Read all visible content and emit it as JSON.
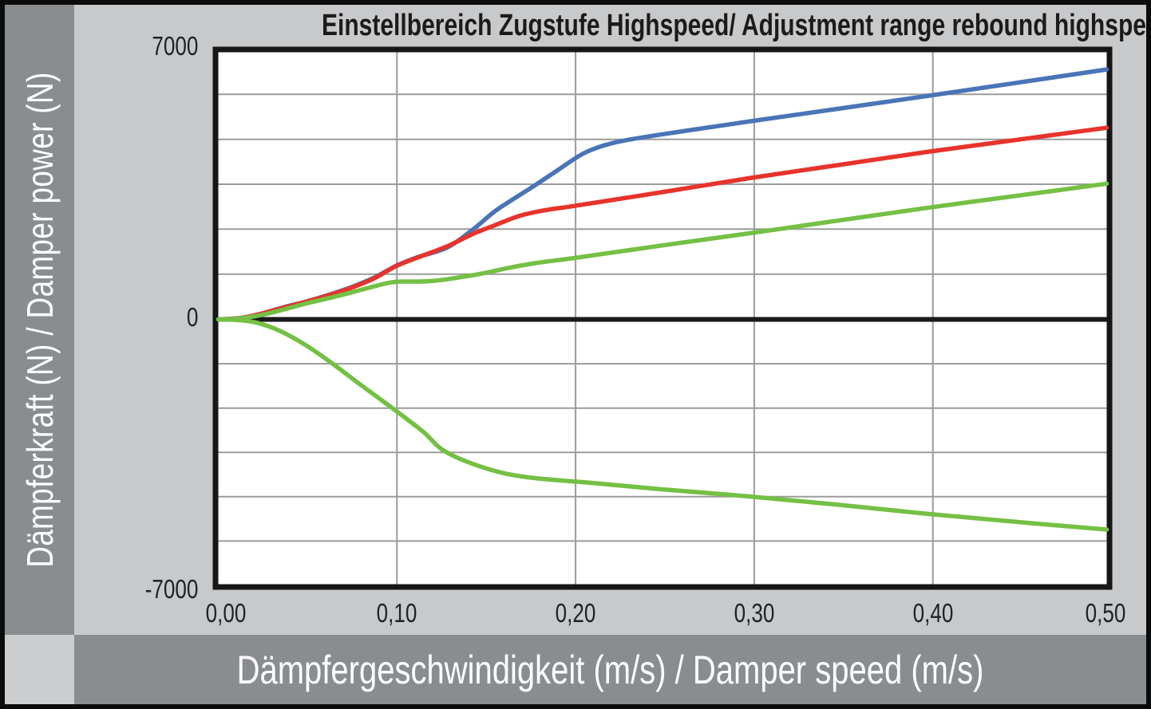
{
  "figure": {
    "title": "Einstellbereich Zugstufe Highspeed/ Adjustment range rebound highspeed",
    "y_axis_label": "Dämpferkraft (N) / Damper power (N)",
    "x_axis_label": "Dämpfergeschwindigkeit (m/s) / Damper speed (m/s)",
    "y_ticks": [
      "7000",
      "0",
      "-7000"
    ],
    "x_ticks": [
      "0,00",
      "0,10",
      "0,20",
      "0,30",
      "0,40",
      "0,50"
    ]
  },
  "colors": {
    "background": "#c8c9cb",
    "band": "#8a8d90",
    "band_text": "#ffffff",
    "plot_background": "#ffffff",
    "frame": "#161616",
    "zero_line": "#1a1a1a",
    "gridline": "#9b9b9b",
    "series_blue": "#4a74b8",
    "series_red": "#e7332b",
    "series_green": "#74c044"
  },
  "chart_data": {
    "type": "line",
    "title": "Einstellbereich Zugstufe Highspeed/ Adjustment range rebound highspeed",
    "xlabel": "Dämpfergeschwindigkeit (m/s) / Damper speed (m/s)",
    "ylabel": "Dämpferkraft (N) / Damper power (N)",
    "xlim": [
      0,
      0.5
    ],
    "ylim": [
      -7000,
      7000
    ],
    "x_tick_step": 0.1,
    "x_tick_labels": [
      "0,00",
      "0,10",
      "0,20",
      "0,30",
      "0,40",
      "0,50"
    ],
    "y_tick_labels": [
      "7000",
      "0",
      "-7000"
    ],
    "grid": true,
    "gridlines_per_half_y": 6,
    "legend": "none",
    "series": [
      {
        "name": "blue-line-rebound-max",
        "color": "#4a74b8",
        "points": [
          [
            0,
            0
          ],
          [
            0.013,
            40
          ],
          [
            0.025,
            160
          ],
          [
            0.038,
            330
          ],
          [
            0.05,
            470
          ],
          [
            0.063,
            650
          ],
          [
            0.075,
            840
          ],
          [
            0.088,
            1090
          ],
          [
            0.1,
            1390
          ],
          [
            0.112,
            1610
          ],
          [
            0.129,
            1870
          ],
          [
            0.143,
            2320
          ],
          [
            0.155,
            2780
          ],
          [
            0.164,
            3060
          ],
          [
            0.178,
            3470
          ],
          [
            0.191,
            3870
          ],
          [
            0.205,
            4290
          ],
          [
            0.217,
            4510
          ],
          [
            0.231,
            4660
          ],
          [
            0.26,
            4870
          ],
          [
            0.3,
            5140
          ],
          [
            0.35,
            5470
          ],
          [
            0.4,
            5800
          ],
          [
            0.45,
            6140
          ],
          [
            0.5,
            6480
          ]
        ]
      },
      {
        "name": "red-line-rebound-min",
        "color": "#e7332b",
        "points": [
          [
            0,
            0
          ],
          [
            0.013,
            40
          ],
          [
            0.025,
            155
          ],
          [
            0.038,
            320
          ],
          [
            0.05,
            465
          ],
          [
            0.063,
            640
          ],
          [
            0.075,
            820
          ],
          [
            0.088,
            1070
          ],
          [
            0.1,
            1380
          ],
          [
            0.112,
            1600
          ],
          [
            0.129,
            1900
          ],
          [
            0.143,
            2210
          ],
          [
            0.155,
            2430
          ],
          [
            0.17,
            2690
          ],
          [
            0.185,
            2840
          ],
          [
            0.2,
            2940
          ],
          [
            0.25,
            3300
          ],
          [
            0.3,
            3670
          ],
          [
            0.35,
            4010
          ],
          [
            0.4,
            4350
          ],
          [
            0.45,
            4660
          ],
          [
            0.5,
            4970
          ]
        ]
      },
      {
        "name": "green-line-lower-compression",
        "color": "#74c044",
        "points": [
          [
            0,
            0
          ],
          [
            0.012,
            -20
          ],
          [
            0.022,
            -90
          ],
          [
            0.035,
            -310
          ],
          [
            0.05,
            -700
          ],
          [
            0.065,
            -1190
          ],
          [
            0.08,
            -1720
          ],
          [
            0.098,
            -2340
          ],
          [
            0.115,
            -2950
          ],
          [
            0.128,
            -3490
          ],
          [
            0.151,
            -3930
          ],
          [
            0.174,
            -4160
          ],
          [
            0.21,
            -4310
          ],
          [
            0.25,
            -4480
          ],
          [
            0.3,
            -4670
          ],
          [
            0.35,
            -4890
          ],
          [
            0.4,
            -5130
          ],
          [
            0.45,
            -5340
          ],
          [
            0.5,
            -5540
          ]
        ]
      },
      {
        "name": "green-line-upper",
        "color": "#74c044",
        "points": [
          [
            0,
            0
          ],
          [
            0.013,
            30
          ],
          [
            0.025,
            120
          ],
          [
            0.038,
            270
          ],
          [
            0.05,
            420
          ],
          [
            0.063,
            560
          ],
          [
            0.075,
            700
          ],
          [
            0.088,
            860
          ],
          [
            0.1,
            975
          ],
          [
            0.12,
            995
          ],
          [
            0.145,
            1160
          ],
          [
            0.164,
            1340
          ],
          [
            0.18,
            1470
          ],
          [
            0.2,
            1590
          ],
          [
            0.25,
            1920
          ],
          [
            0.3,
            2240
          ],
          [
            0.35,
            2570
          ],
          [
            0.4,
            2900
          ],
          [
            0.45,
            3210
          ],
          [
            0.5,
            3520
          ]
        ]
      }
    ]
  }
}
